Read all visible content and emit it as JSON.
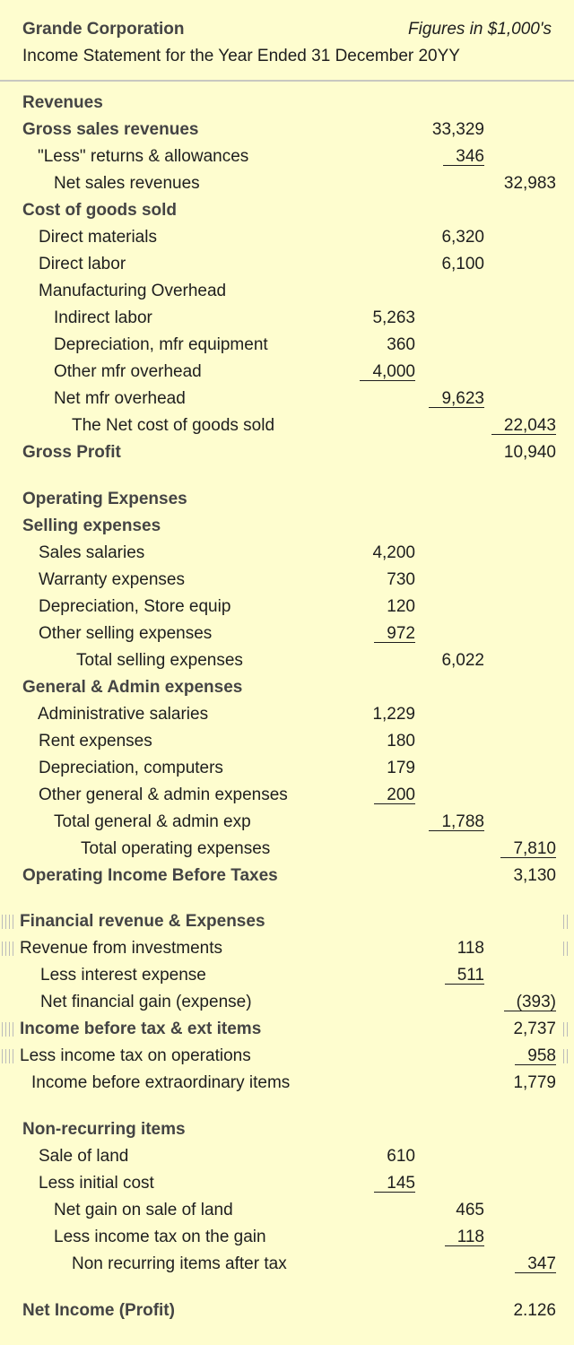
{
  "header": {
    "company": "Grande Corporation",
    "note": "Figures in $1,000's",
    "subtitle": "Income Statement for the Year Ended 31 December 20YY"
  },
  "rows": [
    {
      "label": "Revenues",
      "amounts": [
        null,
        null,
        null
      ]
    },
    {
      "label": "Gross sales revenues",
      "amounts": [
        null,
        "33,329",
        null
      ]
    },
    {
      "label": "\"Less\" returns & allowances",
      "amounts": [
        null,
        "346",
        null
      ]
    },
    {
      "label": "Net sales revenues",
      "amounts": [
        null,
        null,
        "32,983"
      ]
    },
    {
      "label": "Cost of goods sold",
      "amounts": [
        null,
        null,
        null
      ]
    },
    {
      "label": "Direct materials",
      "amounts": [
        null,
        "6,320",
        null
      ]
    },
    {
      "label": "Direct labor",
      "amounts": [
        null,
        "6,100",
        null
      ]
    },
    {
      "label": "Manufacturing Overhead",
      "amounts": [
        null,
        null,
        null
      ]
    },
    {
      "label": "Indirect labor",
      "amounts": [
        "5,263",
        null,
        null
      ]
    },
    {
      "label": "Depreciation, mfr equipment",
      "amounts": [
        "360",
        null,
        null
      ]
    },
    {
      "label": "Other mfr overhead",
      "amounts": [
        "4,000",
        null,
        null
      ]
    },
    {
      "label": "Net mfr overhead",
      "amounts": [
        null,
        "9,623",
        null
      ]
    },
    {
      "label": "The Net cost of goods sold",
      "amounts": [
        null,
        null,
        "22,043"
      ]
    },
    {
      "label": "Gross Profit",
      "amounts": [
        null,
        null,
        "10,940"
      ]
    },
    {
      "label": "Operating Expenses",
      "amounts": [
        null,
        null,
        null
      ]
    },
    {
      "label": "Selling expenses",
      "amounts": [
        null,
        null,
        null
      ]
    },
    {
      "label": "Sales salaries",
      "amounts": [
        "4,200",
        null,
        null
      ]
    },
    {
      "label": "Warranty expenses",
      "amounts": [
        "730",
        null,
        null
      ]
    },
    {
      "label": "Depreciation, Store equip",
      "amounts": [
        "120",
        null,
        null
      ]
    },
    {
      "label": "Other selling expenses",
      "amounts": [
        "972",
        null,
        null
      ]
    },
    {
      "label": "Total selling expenses",
      "amounts": [
        null,
        "6,022",
        null
      ]
    },
    {
      "label": "General & Admin expenses",
      "amounts": [
        null,
        null,
        null
      ]
    },
    {
      "label": "Administrative salaries",
      "amounts": [
        "1,229",
        null,
        null
      ]
    },
    {
      "label": "Rent expenses",
      "amounts": [
        "180",
        null,
        null
      ]
    },
    {
      "label": "Depreciation, computers",
      "amounts": [
        "179",
        null,
        null
      ]
    },
    {
      "label": "Other general & admin expenses",
      "amounts": [
        "200",
        null,
        null
      ]
    },
    {
      "label": "Total general & admin exp",
      "amounts": [
        null,
        "1,788",
        null
      ]
    },
    {
      "label": "Total operating expenses",
      "amounts": [
        null,
        null,
        "7,810"
      ]
    },
    {
      "label": "Operating Income Before Taxes",
      "amounts": [
        null,
        null,
        "3,130"
      ]
    },
    {
      "label": "Financial revenue & Expenses",
      "amounts": [
        null,
        null,
        null
      ]
    },
    {
      "label": "Revenue from investments",
      "amounts": [
        null,
        "118",
        null
      ]
    },
    {
      "label": "Less interest expense",
      "amounts": [
        null,
        "511",
        null
      ]
    },
    {
      "label": "Net financial gain (expense)",
      "amounts": [
        null,
        null,
        "(393)"
      ]
    },
    {
      "label": "Income before tax & ext items",
      "amounts": [
        null,
        null,
        "2,737"
      ]
    },
    {
      "label": "Less income tax on operations",
      "amounts": [
        null,
        null,
        "958"
      ]
    },
    {
      "label": "Income before extraordinary items",
      "amounts": [
        null,
        null,
        "1,779"
      ]
    },
    {
      "label": "Non-recurring items",
      "amounts": [
        null,
        null,
        null
      ]
    },
    {
      "label": "Sale of land",
      "amounts": [
        "610",
        null,
        null
      ]
    },
    {
      "label": "Less initial cost",
      "amounts": [
        "145",
        null,
        null
      ]
    },
    {
      "label": "Net gain on sale of land",
      "amounts": [
        null,
        "465",
        null
      ]
    },
    {
      "label": "Less income tax on the gain",
      "amounts": [
        null,
        "118",
        null
      ]
    },
    {
      "label": "Non recurring items after tax",
      "amounts": [
        null,
        null,
        "347"
      ]
    },
    {
      "label": "Net Income (Profit)",
      "amounts": [
        null,
        null,
        "2.126"
      ]
    }
  ]
}
